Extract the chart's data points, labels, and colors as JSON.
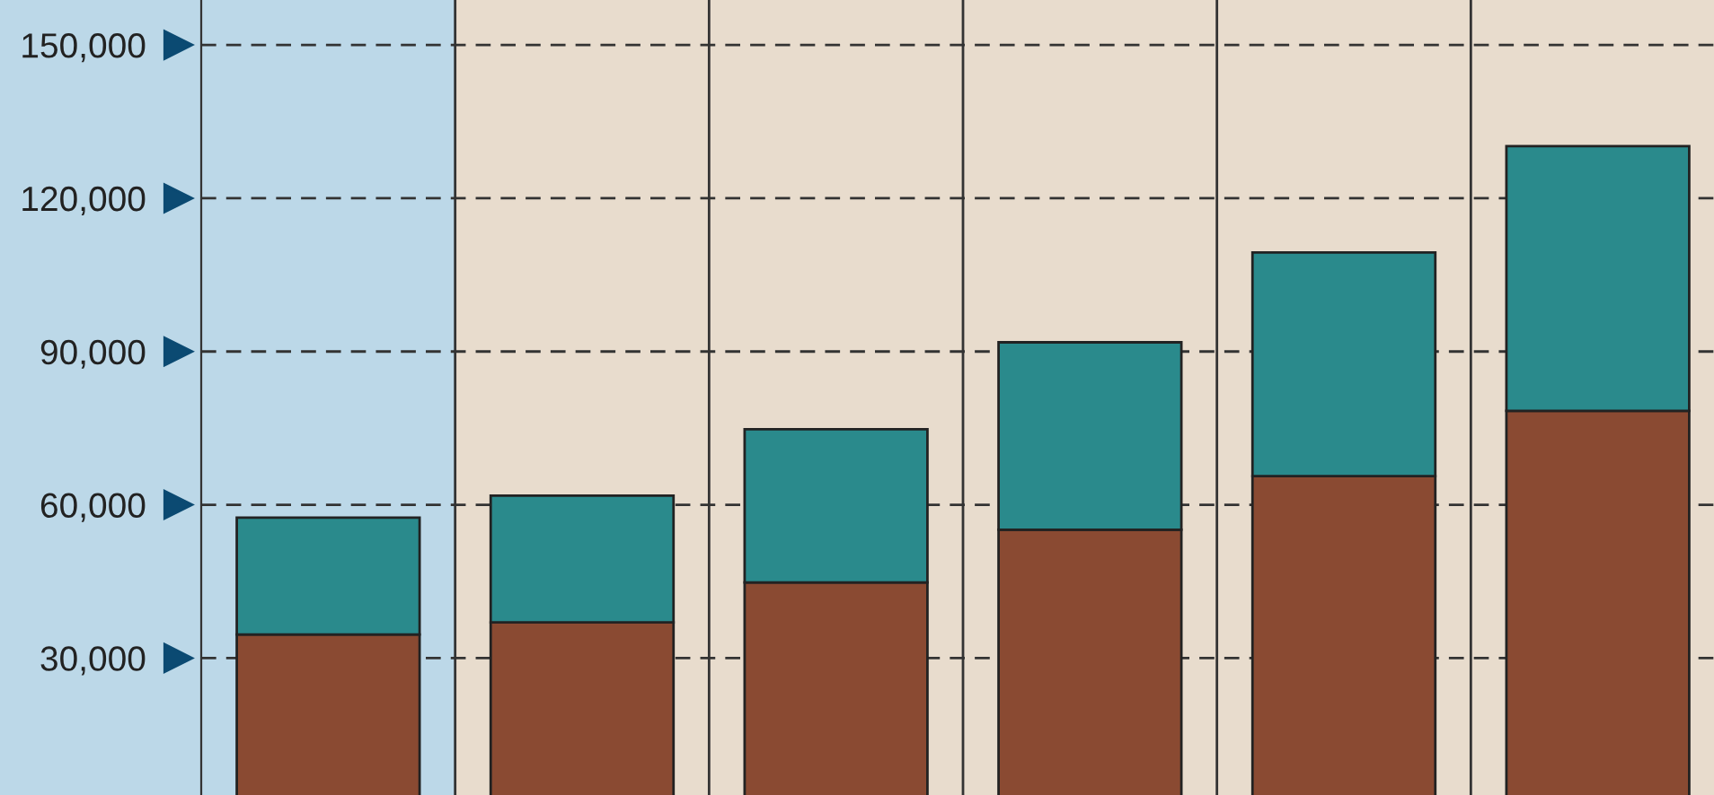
{
  "chart_data": {
    "type": "bar",
    "stacked": true,
    "categories": [
      null,
      null,
      null,
      null,
      null,
      null
    ],
    "series": [
      {
        "color": "#8a4a32",
        "values": [
          34600,
          37000,
          44800,
          55100,
          65600,
          78400
        ]
      },
      {
        "color": "#2a8a8c",
        "values": [
          22900,
          24800,
          30000,
          36700,
          43800,
          51800
        ]
      }
    ],
    "ylim": [
      3200,
      158800
    ],
    "yticks": [
      {
        "value": 30000,
        "label": "30,000"
      },
      {
        "value": 60000,
        "label": "60,000"
      },
      {
        "value": 90000,
        "label": "90,000"
      },
      {
        "value": 120000,
        "label": "120,000"
      },
      {
        "value": 150000,
        "label": "150,000"
      }
    ],
    "grid": true,
    "tick_labels": "y"
  }
}
